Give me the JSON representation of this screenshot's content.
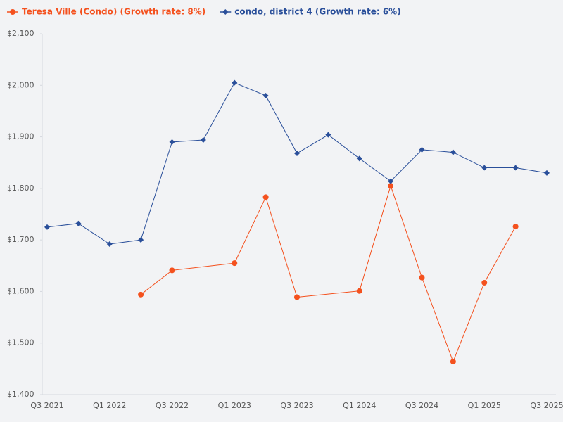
{
  "chart_data": {
    "type": "line",
    "categories": [
      "Q3 2021",
      null,
      "Q1 2022",
      null,
      "Q3 2022",
      null,
      "Q1 2023",
      null,
      "Q3 2023",
      null,
      "Q1 2024",
      null,
      "Q3 2024",
      null,
      "Q1 2025",
      null,
      "Q3 2025"
    ],
    "series": [
      {
        "name": "Teresa Ville (Condo) (Growth rate: 8%)",
        "color": "#f4511e",
        "marker": "circle",
        "values": [
          null,
          null,
          null,
          1594,
          1641,
          null,
          1655,
          1783,
          1589,
          null,
          1601,
          1805,
          1627,
          1464,
          1617,
          1726,
          null
        ]
      },
      {
        "name": "condo, district 4 (Growth rate: 6%)",
        "color": "#2a4f9a",
        "marker": "diamond",
        "values": [
          1725,
          1732,
          1692,
          1700,
          1890,
          1894,
          2005,
          1980,
          1868,
          1904,
          1858,
          1814,
          1875,
          1870,
          1840,
          1840,
          1830
        ]
      }
    ],
    "connect_gaps": true,
    "ylim": [
      1400,
      2100
    ],
    "yticks": [
      {
        "value": 1400,
        "label": "$1,400"
      },
      {
        "value": 1500,
        "label": "$1,500"
      },
      {
        "value": 1600,
        "label": "$1,600"
      },
      {
        "value": 1700,
        "label": "$1,700"
      },
      {
        "value": 1800,
        "label": "$1,800"
      },
      {
        "value": 1900,
        "label": "$1,900"
      },
      {
        "value": 2000,
        "label": "$2,000"
      },
      {
        "value": 2100,
        "label": "$2,100"
      }
    ],
    "legend": "top-left"
  }
}
